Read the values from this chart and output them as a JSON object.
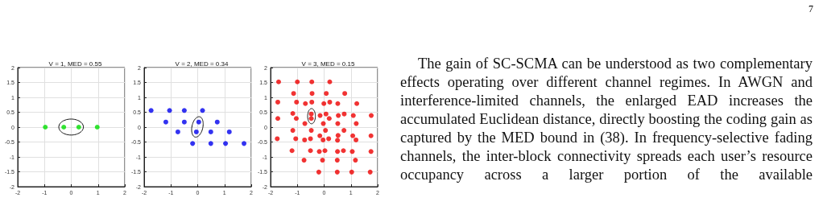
{
  "chart_data": [
    {
      "type": "scatter",
      "title": "V = 1, MED = 0.55",
      "x": [
        -0.97,
        -0.28,
        0.28,
        0.97
      ],
      "values": [
        0,
        0,
        0,
        0
      ],
      "color": "#00dd00",
      "xlim": [
        -2,
        2
      ],
      "ylim": [
        -2,
        2
      ],
      "xticks": [
        -2,
        -1,
        0,
        1,
        2
      ],
      "yticks": [
        -2,
        -1.5,
        -1,
        -0.5,
        0,
        0.5,
        1,
        1.5,
        2
      ],
      "grid": true,
      "marker": "circle"
    },
    {
      "type": "scatter",
      "title": "V = 2, MED = 0.34",
      "x": [
        -1.74,
        -1.05,
        -0.5,
        0.18,
        -1.19,
        -0.5,
        0.04,
        0.73,
        -0.74,
        -0.05,
        0.49,
        1.18,
        -0.19,
        0.49,
        1.04,
        1.73
      ],
      "values": [
        0.56,
        0.56,
        0.56,
        0.56,
        0.17,
        0.17,
        0.17,
        0.17,
        -0.16,
        -0.16,
        -0.16,
        -0.16,
        -0.55,
        -0.55,
        -0.55,
        -0.55
      ],
      "color": "#0000ee",
      "xlim": [
        -2,
        2
      ],
      "ylim": [
        -2,
        2
      ],
      "xticks": [
        -2,
        -1,
        0,
        1,
        2
      ],
      "yticks": [
        -2,
        -1.5,
        -1,
        -0.5,
        0,
        0.5,
        1,
        1.5,
        2
      ],
      "grid": true,
      "marker": "circle"
    },
    {
      "type": "scatter",
      "title": "V = 3, MED = 0.15",
      "x": [
        -1.7,
        -1.0,
        -0.46,
        0.21,
        -1.14,
        -0.45,
        0.08,
        0.77,
        -1.73,
        -1.03,
        -0.7,
        -0.46,
        -0.01,
        0.21,
        0.51,
        1.22,
        -1.17,
        -0.48,
        0.07,
        0.75,
        -0.15,
        0.53,
        1.09,
        1.76,
        -1.73,
        -1.04,
        -0.48,
        0.19,
        -0.72,
        -0.03,
        0.51,
        1.2,
        -1.17,
        -0.48,
        0.05,
        0.74,
        -0.16,
        0.52,
        1.07,
        1.75,
        -1.75,
        -1.06,
        -0.51,
        0.17,
        -0.73,
        -0.04,
        0.5,
        1.19,
        -1.2,
        -0.51,
        0.03,
        0.72,
        -0.18,
        0.5,
        1.05,
        1.75,
        -0.75,
        -0.06,
        0.49,
        1.17,
        -0.2,
        0.49,
        1.03,
        1.72
      ],
      "values": [
        1.52,
        1.52,
        1.52,
        1.52,
        1.13,
        1.13,
        1.13,
        1.13,
        0.84,
        0.84,
        0.79,
        0.84,
        0.79,
        0.84,
        0.79,
        0.79,
        0.46,
        0.44,
        0.44,
        0.44,
        0.39,
        0.39,
        0.39,
        0.39,
        0.29,
        0.29,
        0.29,
        0.29,
        0.12,
        0.12,
        0.12,
        0.12,
        -0.11,
        -0.11,
        -0.11,
        -0.11,
        -0.29,
        -0.28,
        -0.29,
        -0.29,
        -0.39,
        -0.39,
        -0.39,
        -0.39,
        -0.43,
        -0.43,
        -0.44,
        -0.43,
        -0.79,
        -0.79,
        -0.79,
        -0.79,
        -0.82,
        -0.82,
        -0.82,
        -0.82,
        -1.11,
        -1.11,
        -1.11,
        -1.11,
        -1.51,
        -1.51,
        -1.51,
        -1.51
      ],
      "color": "#ee0000",
      "xlim": [
        -2,
        2
      ],
      "ylim": [
        -2,
        2
      ],
      "xticks": [
        -2,
        -1,
        0,
        1,
        2
      ],
      "yticks": [
        -2,
        -1.5,
        -1,
        -0.5,
        0,
        0.5,
        1,
        1.5,
        2
      ],
      "grid": true,
      "marker": "circle"
    },
    {
      "type": "other",
      "annotations": [
        "7",
        "The gain of SC-SCMA can be understood as two complementary effects operating over different channel regimes. In AWGN and interference-limited channels, the enlarged EAD increases the accumulated Euclidean distance, directly boosting the coding gain as captured by the MED bound in (38). In frequency-selective fading channels, the inter-block connectivity spreads each user’s resource occupancy across a larger portion of the available"
      ]
    }
  ]
}
